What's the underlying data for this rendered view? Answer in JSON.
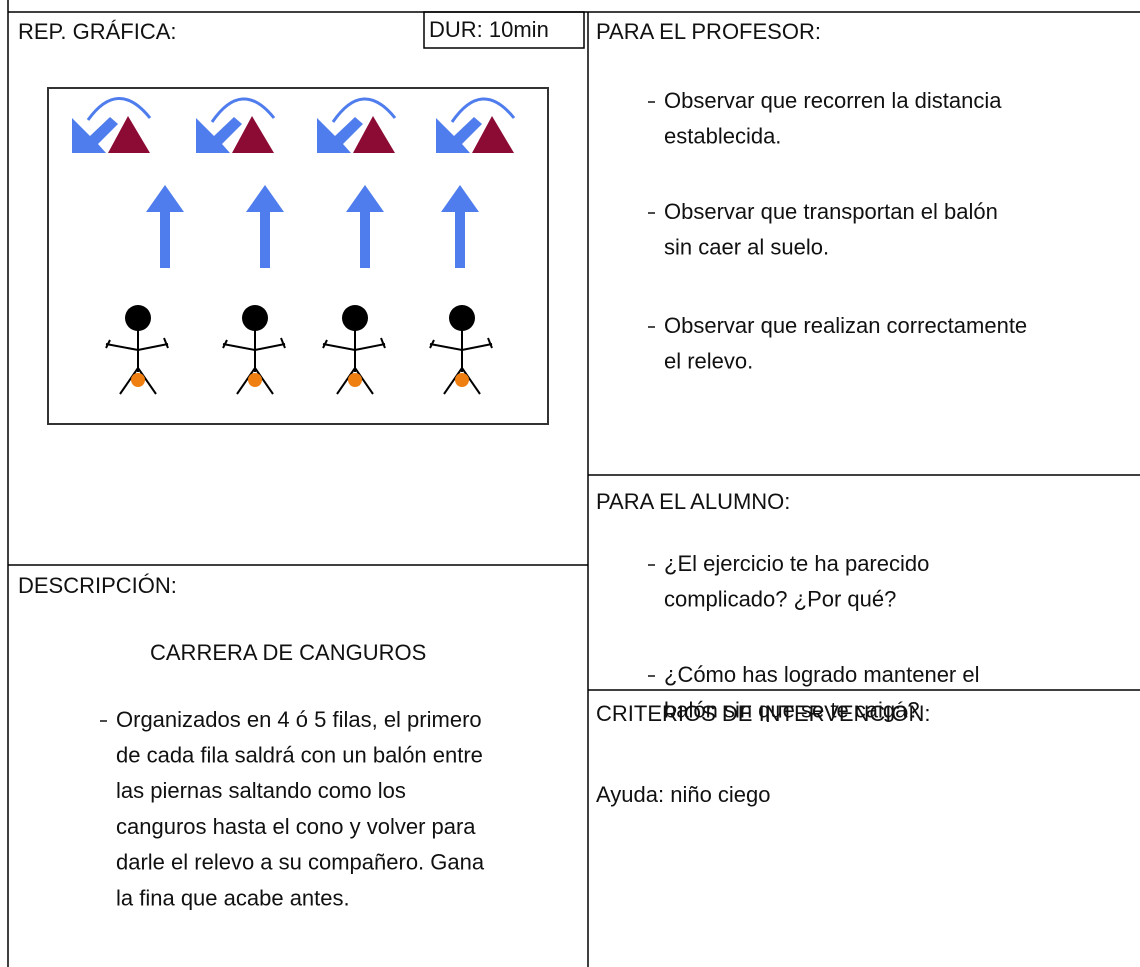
{
  "grafica": {
    "label": "REP. GRÁFICA:",
    "duration": "DUR: 10min"
  },
  "profesor": {
    "label": "PARA EL PROFESOR:",
    "items": [
      [
        "Observar que recorren la distancia",
        "establecida."
      ],
      [
        "Observar que transportan el balón",
        "sin caer al suelo."
      ],
      [
        "Observar que realizan correctamente",
        "el relevo."
      ]
    ]
  },
  "alumno": {
    "label": "PARA EL ALUMNO:",
    "items": [
      [
        "¿El ejercicio te ha parecido",
        "complicado? ¿Por qué?"
      ],
      [
        "¿Cómo has logrado mantener el",
        "balón sin que se te caiga?"
      ]
    ]
  },
  "descripcion": {
    "label": "DESCRIPCIÓN:",
    "title": "CARRERA DE CANGUROS",
    "items": [
      [
        "Organizados en 4 ó 5 filas, el primero",
        "de cada fila saldrá con un balón entre",
        "las piernas saltando como los",
        "canguros hasta el cono y volver para",
        "darle el relevo a su compañero. Gana",
        "la fina que acabe antes."
      ]
    ]
  },
  "criterios": {
    "label": "CRITERIOS DE INTERVENCIÓN:",
    "help": "Ayuda: niño ciego"
  }
}
